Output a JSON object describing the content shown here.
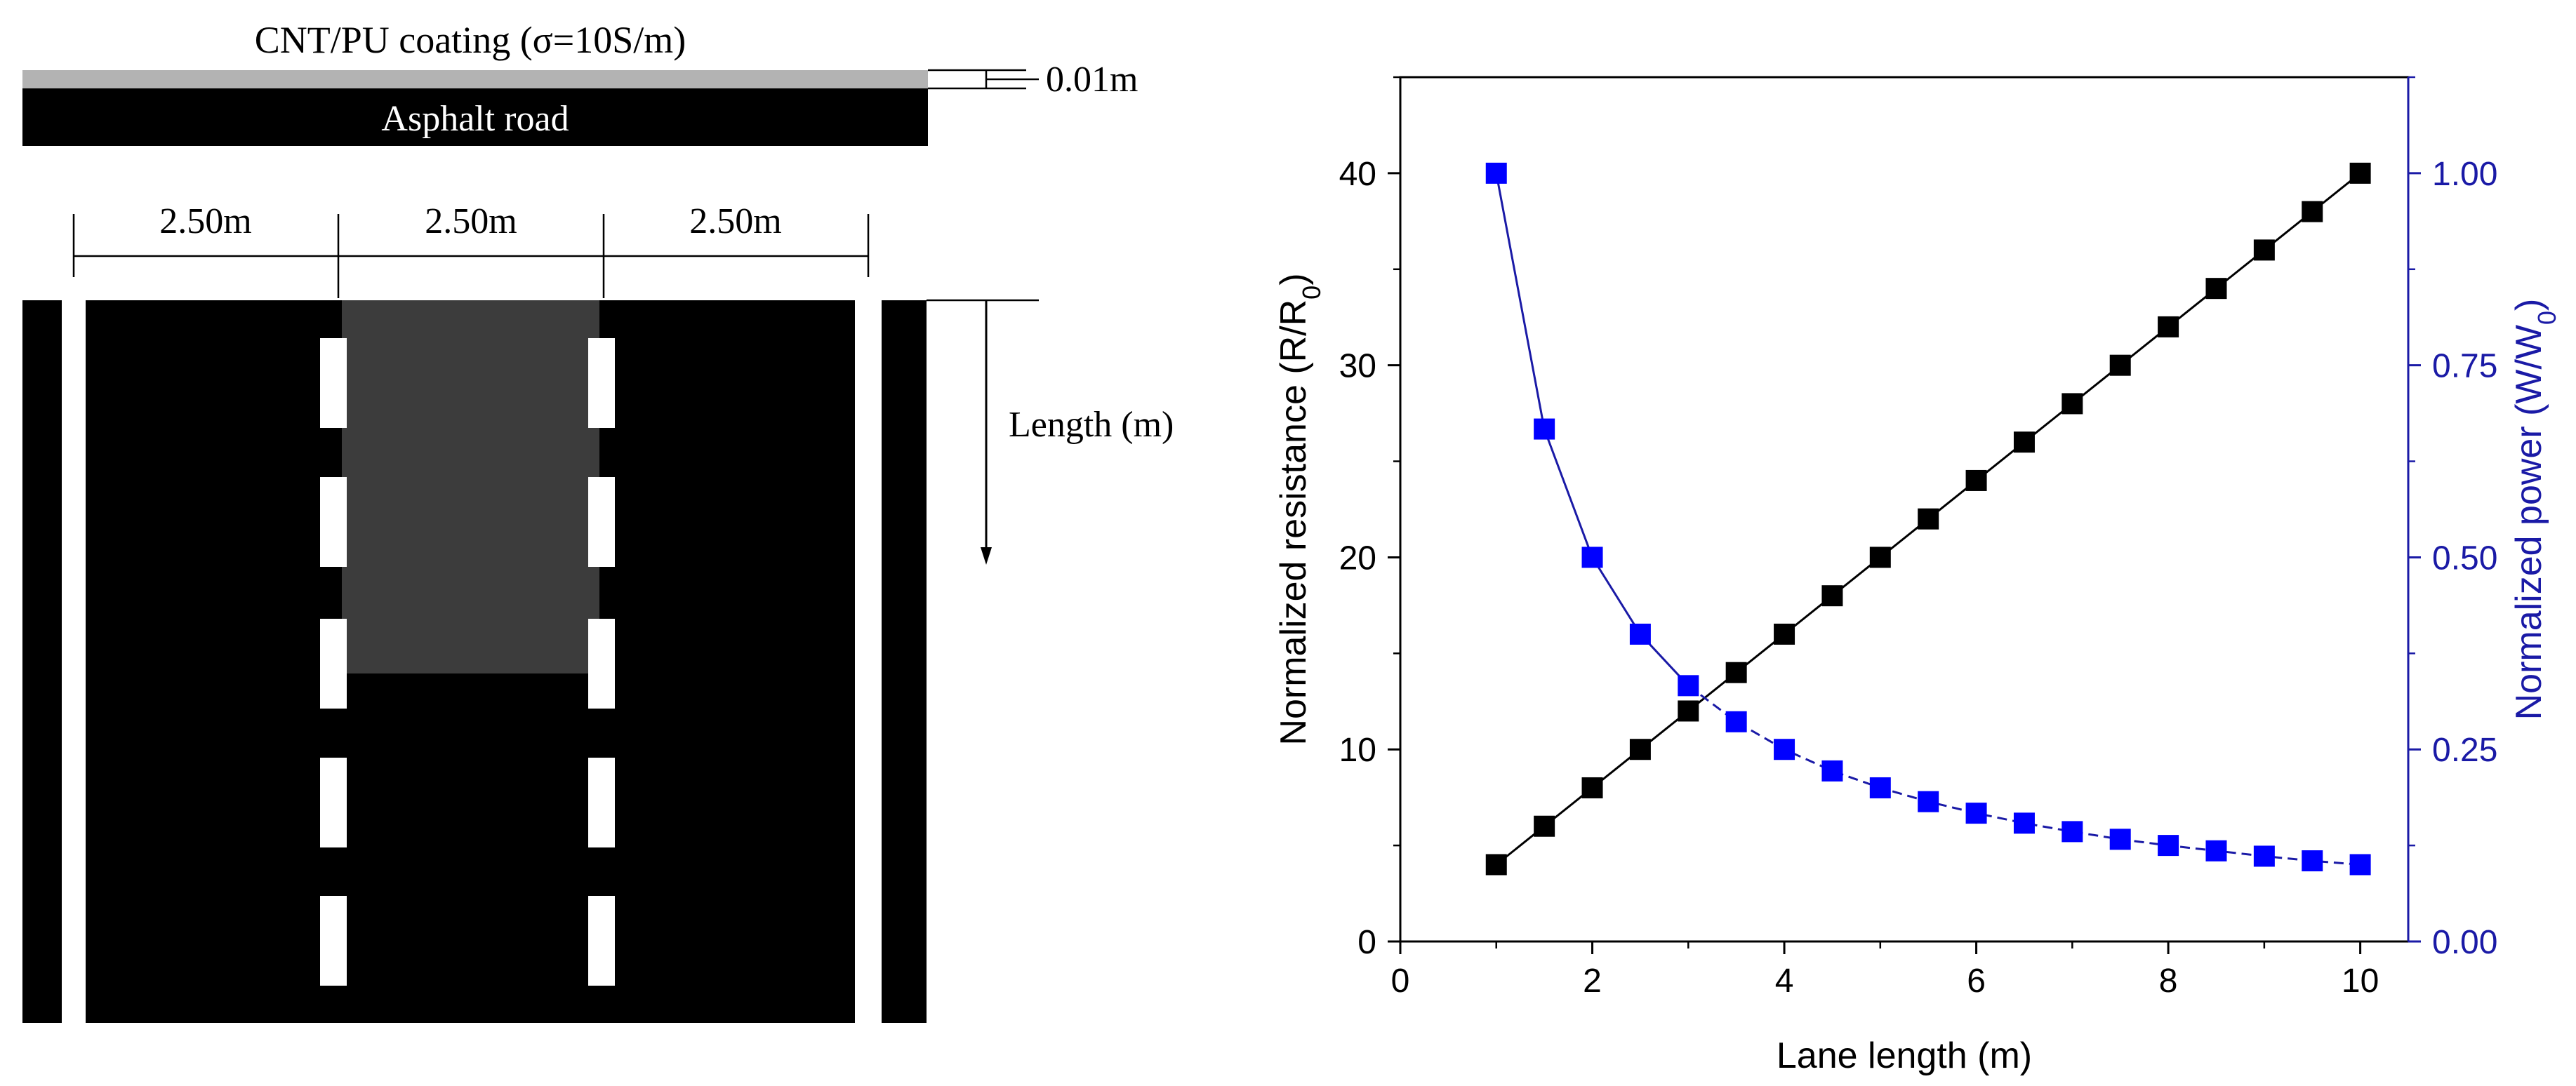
{
  "diagram": {
    "coating_label": "CNT/PU coating (σ=10S/m)",
    "thickness_label": "0.01m",
    "road_label": "Asphalt road",
    "lane_width_labels": [
      "2.50m",
      "2.50m",
      "2.50m"
    ],
    "length_label": "Length (m)",
    "colors": {
      "road": "#000000",
      "coating": "#b3b3b3",
      "heated_zone": "#3c3c3c",
      "marking": "#ffffff"
    }
  },
  "chart_data": {
    "type": "line",
    "xlabel": "Lane length (m)",
    "ylabel_left_main": "Normalized resistance (R/R",
    "ylabel_left_sub": "0",
    "ylabel_left_tail": ")",
    "ylabel_right_main": "Normalized power (W/W",
    "ylabel_right_sub": "0",
    "ylabel_right_tail": ")",
    "xlim": [
      0,
      10.5
    ],
    "ylim_left": [
      0,
      45
    ],
    "ylim_right": [
      0,
      1.125
    ],
    "x_ticks": [
      "0",
      "2",
      "4",
      "6",
      "8",
      "10"
    ],
    "y_ticks_left": [
      "0",
      "10",
      "20",
      "30",
      "40"
    ],
    "y_ticks_right": [
      "0.00",
      "0.25",
      "0.50",
      "0.75",
      "1.00"
    ],
    "series": [
      {
        "axis": "left",
        "color": "#000000",
        "line": "solid",
        "x": [
          1,
          1.5,
          2,
          2.5,
          3,
          3.5,
          4,
          4.5,
          5,
          5.5,
          6,
          6.5,
          7,
          7.5,
          8,
          8.5,
          9,
          9.5,
          10
        ],
        "values": [
          4,
          6,
          8,
          10,
          12,
          14,
          16,
          18,
          20,
          22,
          24,
          26,
          28,
          30,
          32,
          34,
          36,
          38,
          40
        ]
      },
      {
        "axis": "right",
        "color": "#0000ff",
        "line_color": "#1a1aa6",
        "line": "solid-then-dashed",
        "x": [
          1,
          1.5,
          2,
          2.5,
          3,
          3.5,
          4,
          4.5,
          5,
          5.5,
          6,
          6.5,
          7,
          7.5,
          8,
          8.5,
          9,
          9.5,
          10
        ],
        "values": [
          1.0,
          0.667,
          0.5,
          0.4,
          0.333,
          0.286,
          0.25,
          0.222,
          0.2,
          0.182,
          0.167,
          0.154,
          0.143,
          0.133,
          0.125,
          0.118,
          0.111,
          0.105,
          0.1
        ]
      }
    ],
    "grid": false,
    "legend": "none"
  }
}
